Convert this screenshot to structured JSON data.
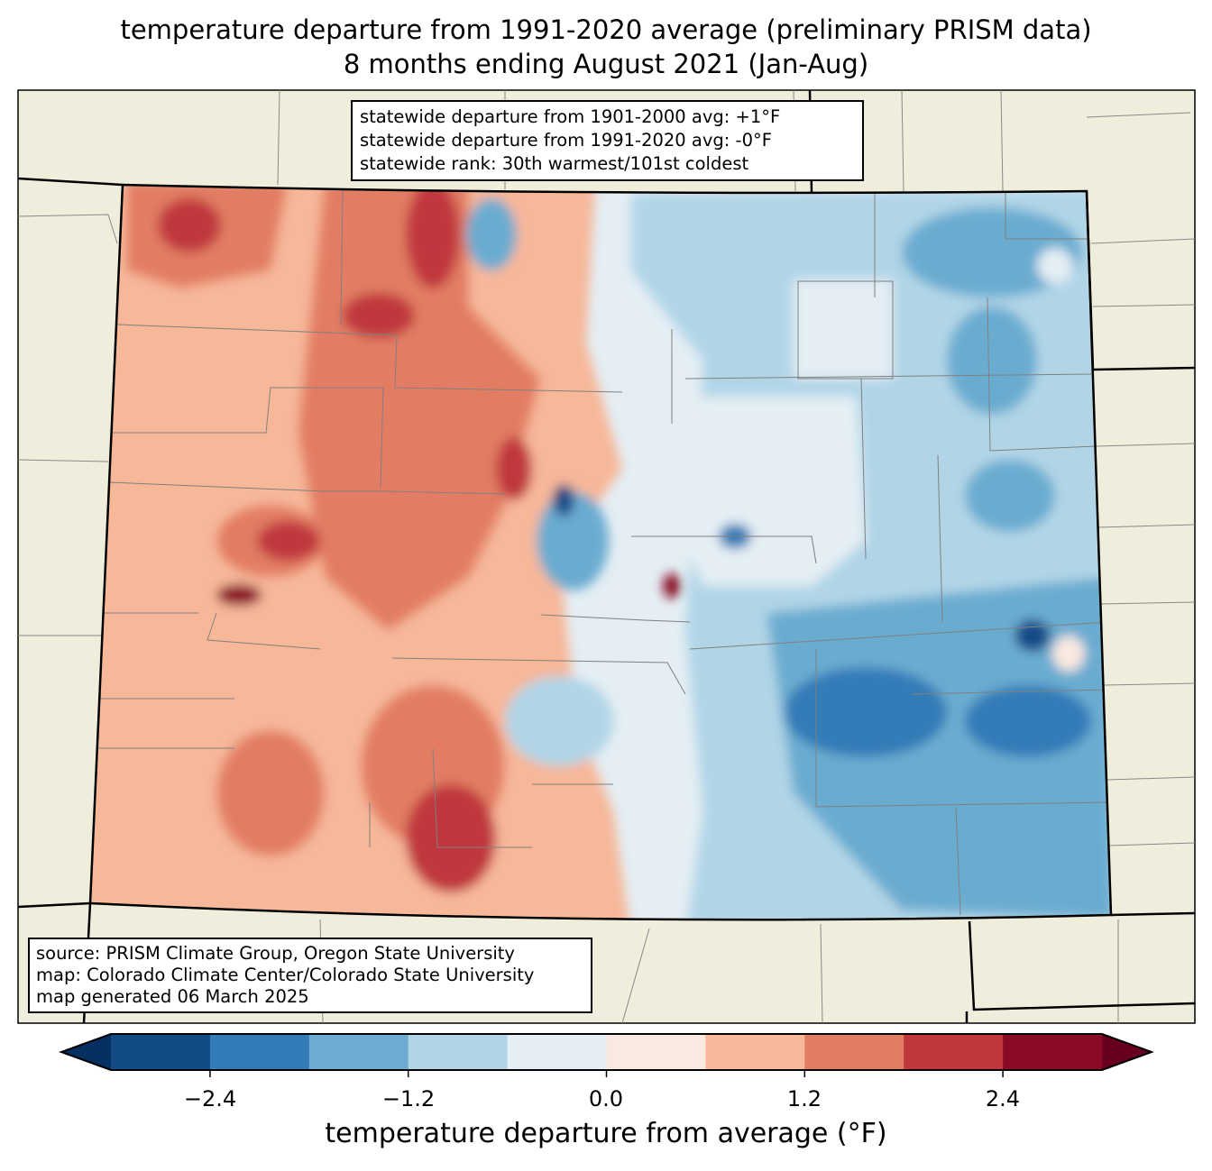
{
  "title": {
    "line1": "temperature departure from 1991-2020 average (preliminary PRISM data)",
    "line2": "8 months ending August 2021 (Jan-Aug)"
  },
  "stats_box": {
    "line1": "statewide departure from 1901-2000 avg: +1°F",
    "line2": "statewide departure from 1991-2020 avg: -0°F",
    "line3": "statewide rank: 30th warmest/101st coldest"
  },
  "source_box": {
    "line1": "source: PRISM Climate Group, Oregon State University",
    "line2": "map: Colorado Climate Center/Colorado State University",
    "line3": "map generated 06 March 2025"
  },
  "colorbar": {
    "label": "temperature departure from average (°F)",
    "levels": [
      -3.0,
      -2.4,
      -1.8,
      -1.2,
      -0.6,
      0.0,
      0.6,
      1.2,
      1.8,
      2.4,
      3.0
    ],
    "colors": [
      "#134b87",
      "#327cb7",
      "#6bacd0",
      "#b1d5e7",
      "#e4eef4",
      "#f9e9e0",
      "#f7b799",
      "#e27d64",
      "#c0383c",
      "#8a0b25"
    ],
    "under_color": "#053061",
    "over_color": "#67001f",
    "ticks": [
      "−2.4",
      "−1.2",
      "0.0",
      "1.2",
      "2.4"
    ]
  },
  "map_colors": {
    "land": "#efeedc",
    "state_border": "#000000",
    "county_border": "#808080"
  }
}
